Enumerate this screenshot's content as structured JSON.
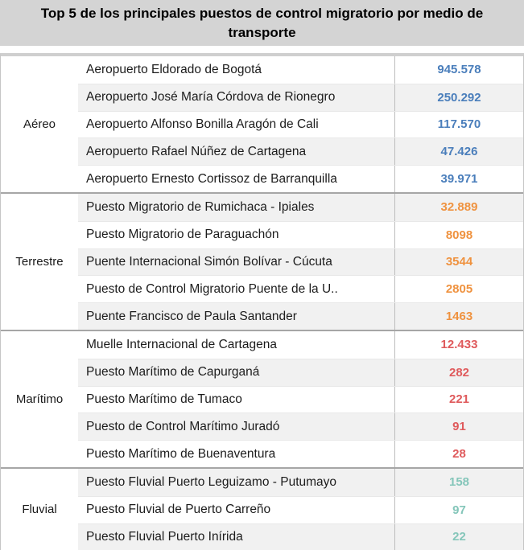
{
  "title": "Top 5 de los principales puestos de control migratorio por medio de transporte",
  "colors": {
    "title_bg": "#d4d4d4",
    "aereo": "#4a7ebb",
    "terrestre": "#ef923f",
    "maritimo": "#df5a5c",
    "fluvial": "#85c6ba",
    "stripe": "#f1f1f1"
  },
  "chart_data": {
    "type": "table",
    "title": "Top 5 de los principales puestos de control migratorio por medio de transporte",
    "legend_position": "none",
    "groups": [
      {
        "label": "Aéreo",
        "value_color": "#4a7ebb",
        "rows": [
          {
            "name": "Aeropuerto Eldorado de Bogotá",
            "display": "945.578",
            "value": 945578
          },
          {
            "name": "Aeropuerto José María Córdova de Rionegro",
            "display": "250.292",
            "value": 250292
          },
          {
            "name": "Aeropuerto Alfonso Bonilla Aragón de Cali",
            "display": "117.570",
            "value": 117570
          },
          {
            "name": "Aeropuerto Rafael Núñez de Cartagena",
            "display": "47.426",
            "value": 47426
          },
          {
            "name": "Aeropuerto Ernesto Cortissoz de Barranquilla",
            "display": "39.971",
            "value": 39971
          }
        ]
      },
      {
        "label": "Terrestre",
        "value_color": "#ef923f",
        "rows": [
          {
            "name": "Puesto Migratorio de Rumichaca - Ipiales",
            "display": "32.889",
            "value": 32889
          },
          {
            "name": "Puesto Migratorio de Paraguachón",
            "display": "8098",
            "value": 8098
          },
          {
            "name": "Puente Internacional Simón Bolívar - Cúcuta",
            "display": "3544",
            "value": 3544
          },
          {
            "name": "Puesto de Control Migratorio Puente de la U..",
            "display": "2805",
            "value": 2805
          },
          {
            "name": "Puente Francisco de Paula Santander",
            "display": "1463",
            "value": 1463
          }
        ]
      },
      {
        "label": "Marítimo",
        "value_color": "#df5a5c",
        "rows": [
          {
            "name": "Muelle Internacional de Cartagena",
            "display": "12.433",
            "value": 12433
          },
          {
            "name": "Puesto Marítimo de Capurganá",
            "display": "282",
            "value": 282
          },
          {
            "name": "Puesto Marítimo de Tumaco",
            "display": "221",
            "value": 221
          },
          {
            "name": "Puesto de Control Marítimo Juradó",
            "display": "91",
            "value": 91
          },
          {
            "name": "Puesto Marítimo de Buenaventura",
            "display": "28",
            "value": 28
          }
        ]
      },
      {
        "label": "Fluvial",
        "value_color": "#85c6ba",
        "rows": [
          {
            "name": "Puesto Fluvial Puerto Leguizamo - Putumayo",
            "display": "158",
            "value": 158
          },
          {
            "name": "Puesto Fluvial de Puerto Carreño",
            "display": "97",
            "value": 97
          },
          {
            "name": "Puesto Fluvial Puerto Inírida",
            "display": "22",
            "value": 22
          }
        ]
      }
    ]
  }
}
